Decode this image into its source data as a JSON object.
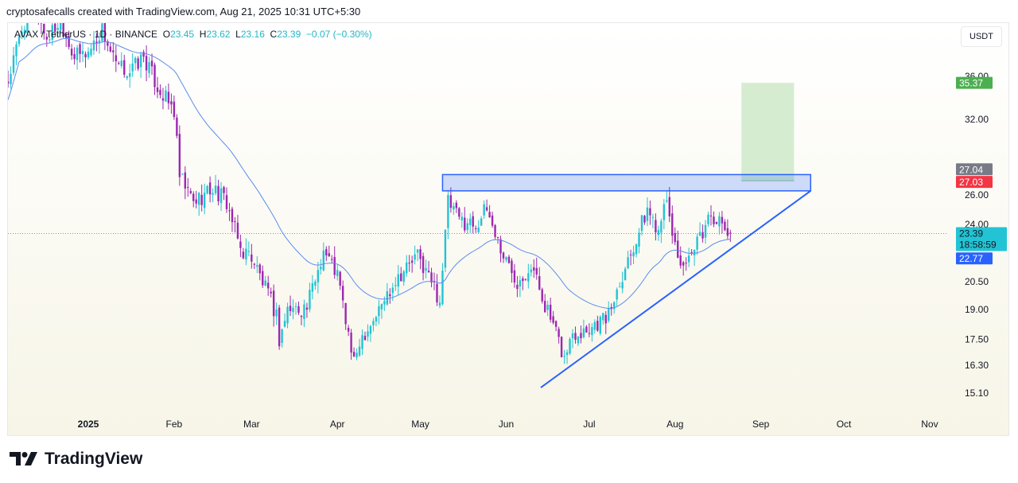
{
  "credit": "cryptosafecalls created with TradingView.com, Aug 21, 2025 10:31 UTC+5:30",
  "legend": {
    "symbol": "AVAX / TetherUS · 1D · BINANCE",
    "o_label": "O",
    "o": "23.45",
    "h_label": "H",
    "h": "23.62",
    "l_label": "L",
    "l": "23.16",
    "c_label": "C",
    "c": "23.39",
    "change": "−0.07 (−0.30%)"
  },
  "currency_button": "USDT",
  "logo_text": "TradingView",
  "colors": {
    "up": "#22c3d4",
    "down": "#9c27b0",
    "ma": "#5b8def",
    "drawing": "#2962ff",
    "target": "#d5ecd1",
    "label_green": "#4caf50",
    "label_red": "#f23645",
    "label_grey": "#787b86",
    "label_cyan": "#22c3d4",
    "label_blue": "#2962ff"
  },
  "chart_data": {
    "type": "candlestick",
    "scale": "log",
    "x_unit": "days since 2025-01-01",
    "xlim": [
      -29,
      290
    ],
    "ylim": [
      14.6,
      43
    ],
    "y_ticks": [
      "36.00",
      "32.00",
      "26.00",
      "24.00",
      "20.50",
      "19.00",
      "17.50",
      "16.30",
      "15.10"
    ],
    "x_ticks": [
      {
        "label": "2025",
        "day": 0,
        "bold": true
      },
      {
        "label": "Feb",
        "day": 31
      },
      {
        "label": "Mar",
        "day": 59
      },
      {
        "label": "Apr",
        "day": 90
      },
      {
        "label": "May",
        "day": 120
      },
      {
        "label": "Jun",
        "day": 151
      },
      {
        "label": "Jul",
        "day": 181
      },
      {
        "label": "Aug",
        "day": 212
      },
      {
        "label": "Sep",
        "day": 243
      },
      {
        "label": "Oct",
        "day": 273
      },
      {
        "label": "Nov",
        "day": 304
      }
    ],
    "close_keypoints": [
      [
        -29,
        35.5
      ],
      [
        -24,
        41
      ],
      [
        -20,
        44
      ],
      [
        -15,
        40
      ],
      [
        -10,
        42
      ],
      [
        -5,
        38
      ],
      [
        0,
        38.5
      ],
      [
        5,
        41
      ],
      [
        10,
        37
      ],
      [
        15,
        36.5
      ],
      [
        20,
        38
      ],
      [
        25,
        35
      ],
      [
        31,
        32.7
      ],
      [
        33,
        27.3
      ],
      [
        38,
        25.5
      ],
      [
        45,
        26.5
      ],
      [
        50,
        25.5
      ],
      [
        55,
        22.4
      ],
      [
        59,
        22
      ],
      [
        68,
        18.7
      ],
      [
        69,
        17.5
      ],
      [
        72,
        19
      ],
      [
        79,
        19.1
      ],
      [
        85,
        22.4
      ],
      [
        90,
        20.9
      ],
      [
        96,
        16.3
      ],
      [
        98,
        17.5
      ],
      [
        104,
        18.7
      ],
      [
        111,
        20.7
      ],
      [
        119,
        22
      ],
      [
        124,
        20.5
      ],
      [
        127,
        19.5
      ],
      [
        130,
        25.5
      ],
      [
        134,
        24.3
      ],
      [
        140,
        24
      ],
      [
        144,
        25
      ],
      [
        150,
        22
      ],
      [
        155,
        20.6
      ],
      [
        160,
        21.5
      ],
      [
        165,
        19.3
      ],
      [
        172,
        16.6
      ],
      [
        175,
        17.8
      ],
      [
        181,
        18.1
      ],
      [
        188,
        18.7
      ],
      [
        192,
        20.6
      ],
      [
        198,
        23.1
      ],
      [
        202,
        25
      ],
      [
        206,
        23.7
      ],
      [
        208,
        25.9
      ],
      [
        213,
        22
      ],
      [
        216,
        21.2
      ],
      [
        221,
        23.1
      ],
      [
        225,
        24.8
      ],
      [
        229,
        23.8
      ],
      [
        232,
        23.39
      ]
    ],
    "last": {
      "open": 23.45,
      "high": 23.62,
      "low": 23.16,
      "close": 23.39
    },
    "moving_average": "EMA-like smoothing of closes",
    "drawings": {
      "resistance_zone": {
        "day_start": 128,
        "day_end": 261,
        "price_top": 27.5,
        "price_bottom": 26.3
      },
      "trendline": {
        "from": [
          163.5,
          15.33
        ],
        "to": [
          261,
          26.3
        ]
      },
      "target_box": {
        "day_start": 236,
        "day_end": 255,
        "price_top": 35.37,
        "price_bottom": 27.04
      }
    },
    "price_labels": [
      {
        "value": "35.37",
        "price": 35.37,
        "color": "label_green"
      },
      {
        "value": "27.04",
        "price": 27.9,
        "color": "label_grey"
      },
      {
        "value": "27.03",
        "price": 26.95,
        "color": "label_red"
      },
      {
        "value": "23.39",
        "sub": "18:58:59",
        "price": 23.39,
        "color": "label_cyan"
      },
      {
        "value": "22.77",
        "price": 21.85,
        "color": "label_blue"
      }
    ]
  }
}
